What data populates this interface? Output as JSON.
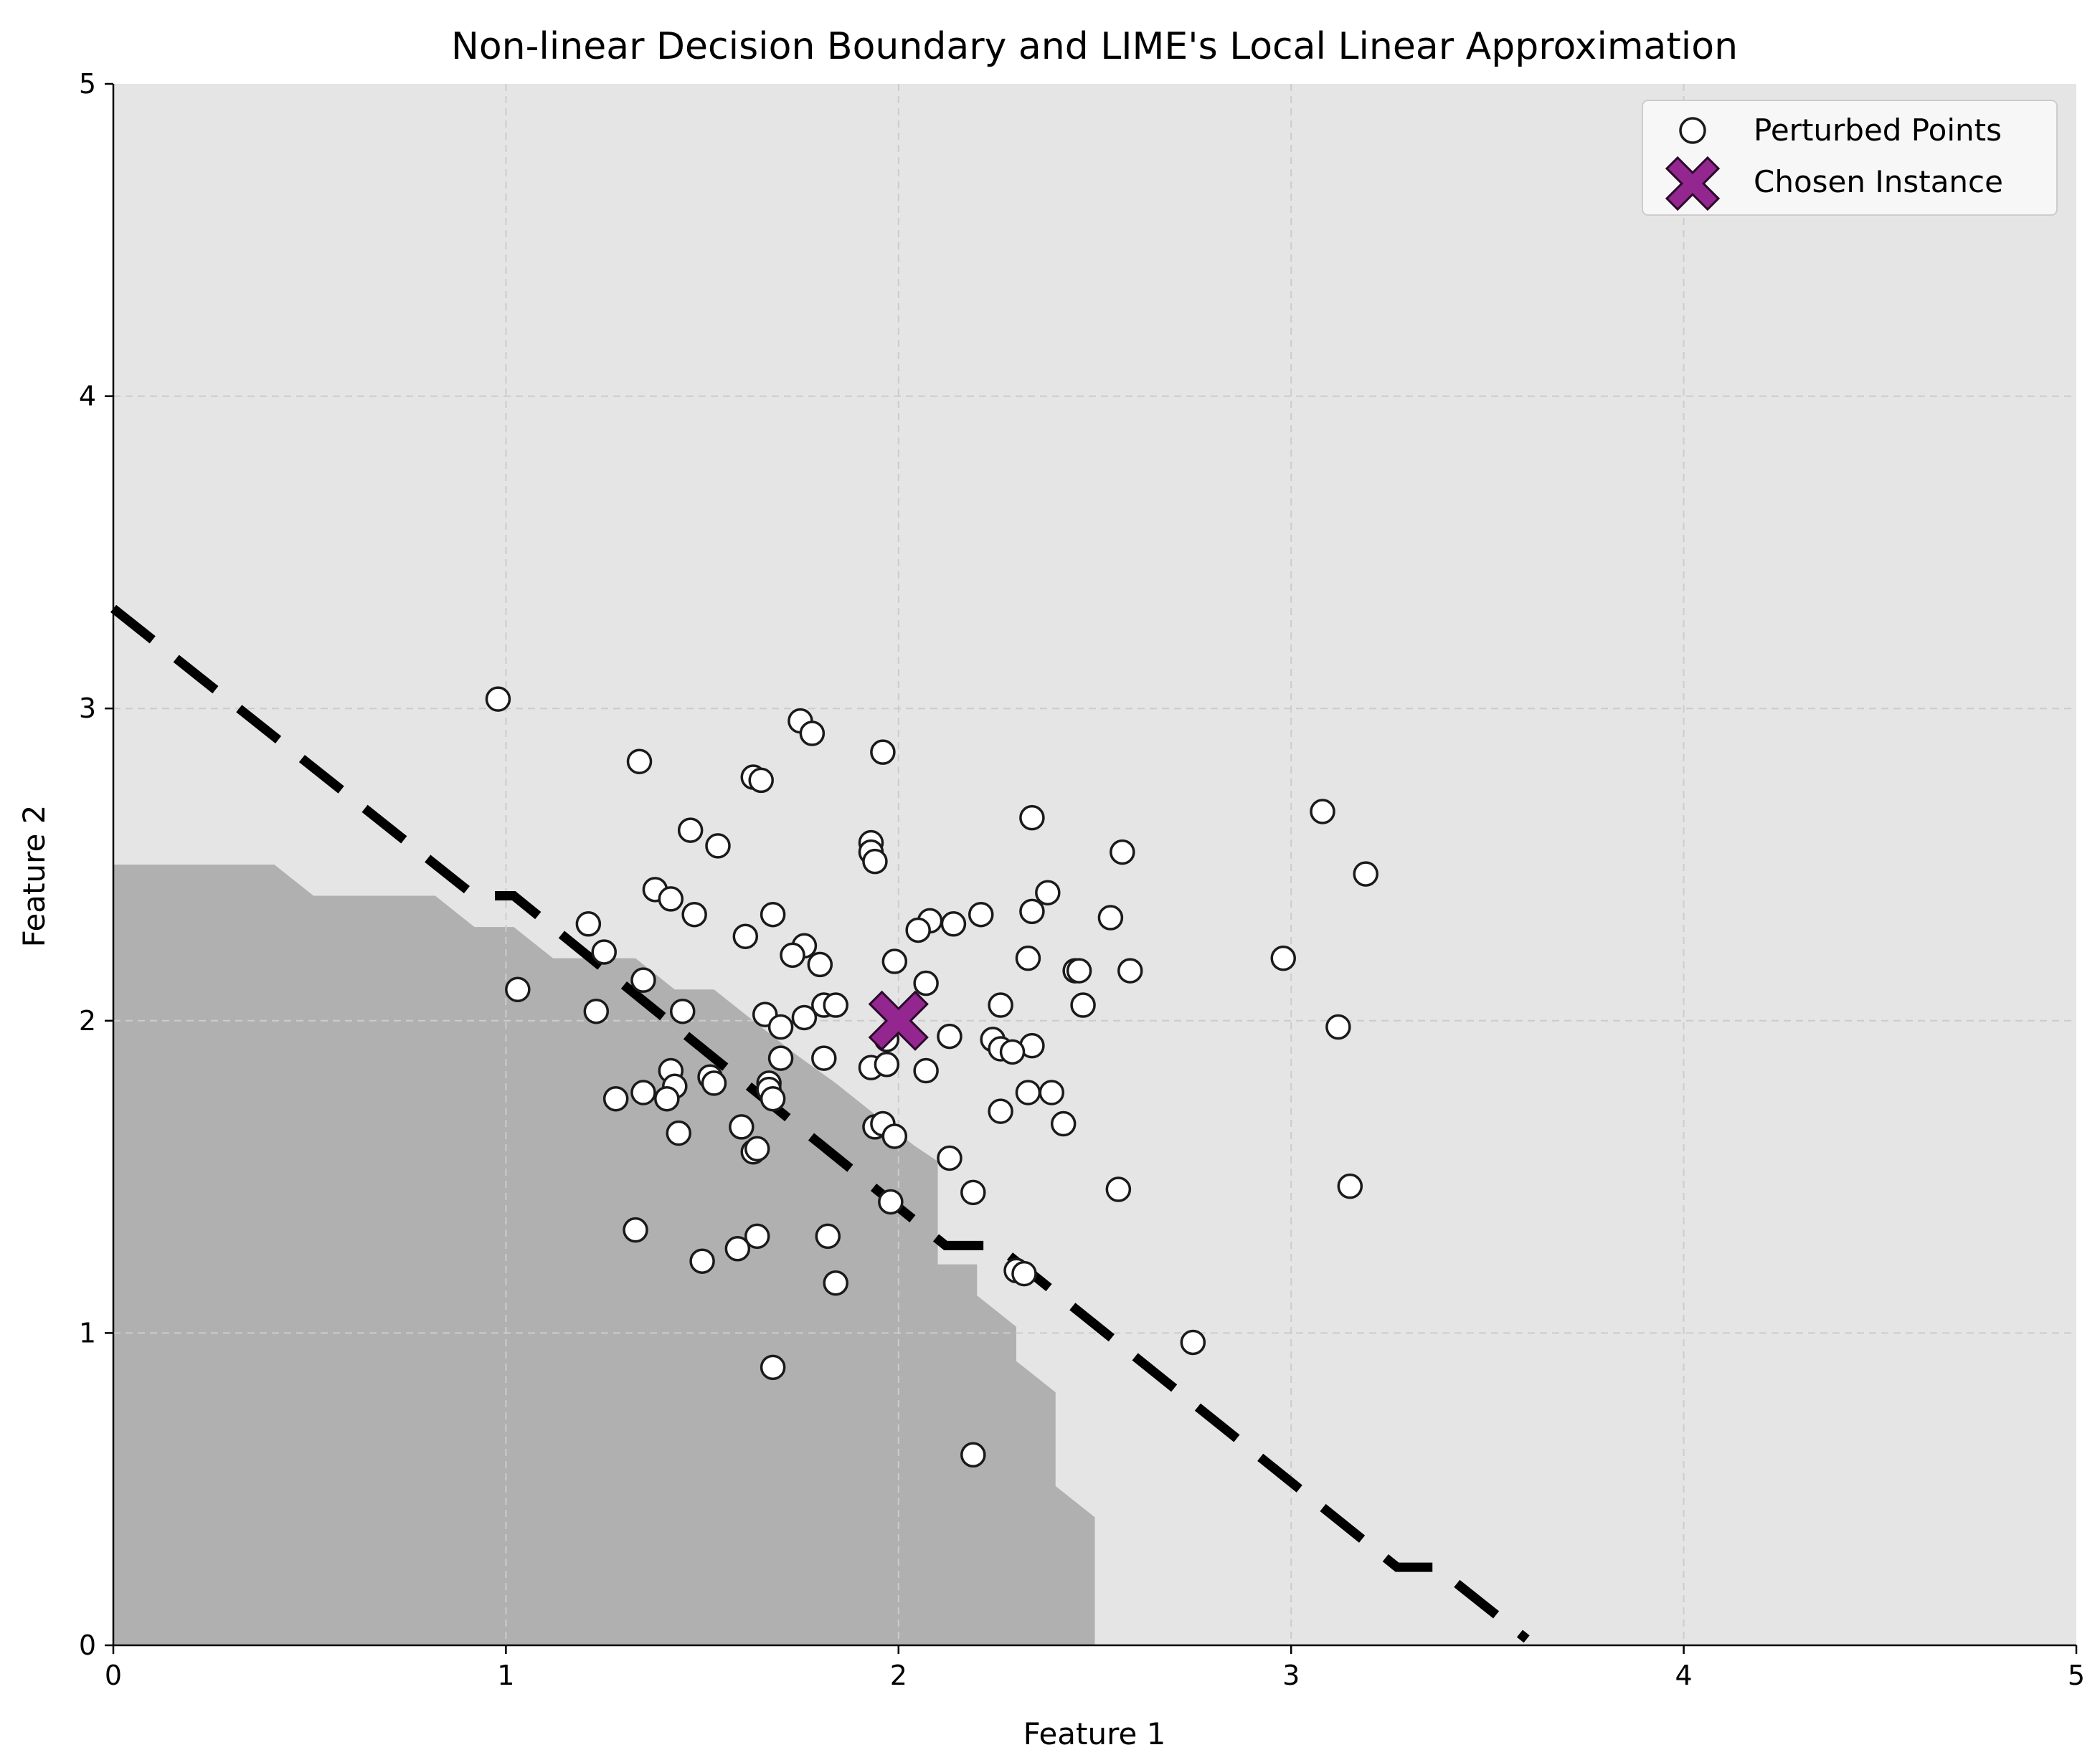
{
  "chart_data": {
    "type": "scatter",
    "title": "Non-linear Decision Boundary and LIME's Local Linear Approximation",
    "xlabel": "Feature 1",
    "ylabel": "Feature 2",
    "xlim": [
      0,
      5
    ],
    "ylim": [
      0,
      5
    ],
    "xticks": [
      "0",
      "1",
      "2",
      "3",
      "4",
      "5"
    ],
    "yticks": [
      "0",
      "1",
      "2",
      "3",
      "4",
      "5"
    ],
    "grid": true,
    "legend_position": "top-right",
    "colors": {
      "background_region": "#e5e5e5",
      "class_region": "#b0b0b0",
      "point_fill": "#ffffff",
      "point_edge": "#1a1a1a",
      "instance": "#93278f",
      "boundary": "#000000",
      "grid": "#cccccc"
    },
    "class_region_outline": [
      [
        0,
        0
      ],
      [
        0,
        2.5
      ],
      [
        0.41,
        2.5
      ],
      [
        0.51,
        2.4
      ],
      [
        0.82,
        2.4
      ],
      [
        0.92,
        2.3
      ],
      [
        1.02,
        2.3
      ],
      [
        1.12,
        2.2
      ],
      [
        1.33,
        2.2
      ],
      [
        1.43,
        2.1
      ],
      [
        1.53,
        2.1
      ],
      [
        1.63,
        2.0
      ],
      [
        1.73,
        1.9
      ],
      [
        1.84,
        1.8
      ],
      [
        1.94,
        1.7
      ],
      [
        2.04,
        1.6
      ],
      [
        2.1,
        1.55
      ],
      [
        2.1,
        1.22
      ],
      [
        2.2,
        1.22
      ],
      [
        2.2,
        1.12
      ],
      [
        2.3,
        1.02
      ],
      [
        2.3,
        0.91
      ],
      [
        2.4,
        0.81
      ],
      [
        2.4,
        0.51
      ],
      [
        2.5,
        0.41
      ],
      [
        2.5,
        0
      ]
    ],
    "lime_boundary": [
      [
        0.0,
        3.32
      ],
      [
        0.92,
        2.4
      ],
      [
        1.02,
        2.4
      ],
      [
        2.12,
        1.28
      ],
      [
        2.25,
        1.28
      ],
      [
        3.27,
        0.25
      ],
      [
        3.37,
        0.25
      ],
      [
        3.6,
        0.02
      ]
    ],
    "series": [
      {
        "name": "Perturbed Points",
        "marker": "circle",
        "points": [
          [
            0.98,
            3.03
          ],
          [
            1.34,
            2.83
          ],
          [
            1.75,
            2.96
          ],
          [
            1.78,
            2.92
          ],
          [
            1.96,
            2.86
          ],
          [
            1.63,
            2.78
          ],
          [
            1.65,
            2.77
          ],
          [
            3.08,
            2.67
          ],
          [
            2.34,
            2.65
          ],
          [
            1.47,
            2.61
          ],
          [
            1.54,
            2.56
          ],
          [
            1.93,
            2.57
          ],
          [
            1.93,
            2.54
          ],
          [
            1.94,
            2.51
          ],
          [
            2.57,
            2.54
          ],
          [
            3.19,
            2.47
          ],
          [
            1.38,
            2.42
          ],
          [
            1.42,
            2.39
          ],
          [
            2.38,
            2.41
          ],
          [
            1.48,
            2.34
          ],
          [
            1.68,
            2.34
          ],
          [
            2.34,
            2.35
          ],
          [
            2.21,
            2.34
          ],
          [
            2.08,
            2.32
          ],
          [
            2.05,
            2.29
          ],
          [
            2.14,
            2.31
          ],
          [
            2.54,
            2.33
          ],
          [
            1.21,
            2.31
          ],
          [
            1.61,
            2.27
          ],
          [
            1.76,
            2.24
          ],
          [
            1.25,
            2.22
          ],
          [
            1.73,
            2.21
          ],
          [
            1.8,
            2.18
          ],
          [
            1.99,
            2.19
          ],
          [
            2.33,
            2.2
          ],
          [
            2.98,
            2.2
          ],
          [
            2.45,
            2.16
          ],
          [
            2.46,
            2.16
          ],
          [
            2.59,
            2.16
          ],
          [
            1.35,
            2.13
          ],
          [
            2.07,
            2.12
          ],
          [
            1.03,
            2.1
          ],
          [
            1.66,
            2.02
          ],
          [
            1.23,
            2.03
          ],
          [
            1.45,
            2.03
          ],
          [
            1.81,
            2.05
          ],
          [
            1.84,
            2.05
          ],
          [
            1.76,
            2.01
          ],
          [
            2.26,
            2.05
          ],
          [
            2.47,
            2.05
          ],
          [
            1.7,
            1.98
          ],
          [
            3.12,
            1.98
          ],
          [
            2.13,
            1.95
          ],
          [
            2.24,
            1.94
          ],
          [
            2.26,
            1.91
          ],
          [
            2.34,
            1.92
          ],
          [
            2.29,
            1.9
          ],
          [
            1.7,
            1.88
          ],
          [
            1.81,
            1.88
          ],
          [
            1.97,
            1.94
          ],
          [
            1.93,
            1.85
          ],
          [
            1.97,
            1.86
          ],
          [
            2.07,
            1.84
          ],
          [
            1.42,
            1.84
          ],
          [
            1.52,
            1.82
          ],
          [
            1.53,
            1.8
          ],
          [
            1.43,
            1.79
          ],
          [
            1.67,
            1.8
          ],
          [
            1.67,
            1.78
          ],
          [
            1.35,
            1.77
          ],
          [
            1.28,
            1.75
          ],
          [
            1.41,
            1.75
          ],
          [
            1.68,
            1.75
          ],
          [
            2.33,
            1.77
          ],
          [
            2.39,
            1.77
          ],
          [
            2.26,
            1.71
          ],
          [
            2.42,
            1.67
          ],
          [
            1.94,
            1.66
          ],
          [
            1.96,
            1.67
          ],
          [
            1.6,
            1.66
          ],
          [
            1.44,
            1.64
          ],
          [
            1.99,
            1.63
          ],
          [
            1.63,
            1.58
          ],
          [
            1.64,
            1.59
          ],
          [
            2.13,
            1.56
          ],
          [
            2.56,
            1.46
          ],
          [
            3.15,
            1.47
          ],
          [
            2.19,
            1.45
          ],
          [
            1.98,
            1.42
          ],
          [
            1.33,
            1.33
          ],
          [
            1.82,
            1.31
          ],
          [
            1.64,
            1.31
          ],
          [
            1.59,
            1.27
          ],
          [
            1.5,
            1.23
          ],
          [
            2.3,
            1.2
          ],
          [
            2.32,
            1.19
          ],
          [
            1.84,
            1.16
          ],
          [
            2.75,
            0.97
          ],
          [
            1.68,
            0.89
          ],
          [
            2.19,
            0.61
          ]
        ]
      },
      {
        "name": "Chosen Instance",
        "marker": "x",
        "points": [
          [
            2.0,
            2.0
          ]
        ]
      }
    ]
  }
}
